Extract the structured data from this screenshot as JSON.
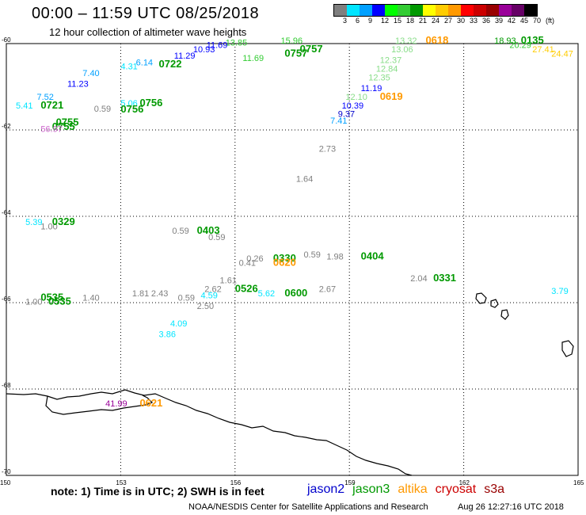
{
  "title": "00:00 – 11:59 UTC 08/25/2018",
  "subtitle": "12 hour collection of altimeter wave heights",
  "legend": {
    "colors": [
      "#7f7f7f",
      "#00e5ff",
      "#00a0ff",
      "#0000ff",
      "#00ff00",
      "#33cc33",
      "#009900",
      "#ffff00",
      "#ffcc00",
      "#ff9900",
      "#ff0000",
      "#cc0000",
      "#990000",
      "#990099",
      "#660066",
      "#000000"
    ],
    "labels": [
      "3",
      "6",
      "9",
      "12",
      "15",
      "18",
      "21",
      "24",
      "27",
      "30",
      "33",
      "36",
      "39",
      "42",
      "45",
      "70",
      "(ft)"
    ]
  },
  "axes": {
    "x_ticks": [
      "150",
      "153",
      "156",
      "159",
      "162",
      "165"
    ],
    "y_ticks": [
      "-60",
      "-62",
      "-64",
      "-66",
      "-68",
      "-70"
    ]
  },
  "footer": {
    "note": "note: 1) Time is in UTC; 2) SWH is in feet",
    "credit": "NOAA/NESDIS Center for Satellite Applications and Research",
    "generated": "Aug 26 12:27:16 UTC 2018"
  },
  "satellites": [
    {
      "name": "jason2",
      "color": "#0000cc"
    },
    {
      "name": "jason3",
      "color": "#009900"
    },
    {
      "name": "altika",
      "color": "#ff9900"
    },
    {
      "name": "cryosat",
      "color": "#cc0000"
    },
    {
      "name": "s3a",
      "color": "#990000"
    }
  ],
  "map_labels": [
    {
      "t": "13.85",
      "lon": 155.75,
      "lat": -60.05,
      "c": "#33cc33"
    },
    {
      "t": "11.69",
      "lon": 155.25,
      "lat": -60.1,
      "c": "#0000ff"
    },
    {
      "t": "10.93",
      "lon": 154.9,
      "lat": -60.2,
      "c": "#0000ff"
    },
    {
      "t": "11.29",
      "lon": 154.4,
      "lat": -60.35,
      "c": "#0000ff"
    },
    {
      "t": "6.14",
      "lon": 153.4,
      "lat": -60.5,
      "c": "#00a0ff"
    },
    {
      "t": "4.31",
      "lon": 153.0,
      "lat": -60.6,
      "c": "#00e5ff"
    },
    {
      "t": "0722",
      "lon": 154.0,
      "lat": -60.55,
      "c": "#009900",
      "b": true
    },
    {
      "t": "7.40",
      "lon": 152.0,
      "lat": -60.75,
      "c": "#00a0ff"
    },
    {
      "t": "11.23",
      "lon": 151.6,
      "lat": -61.0,
      "c": "#0000ff"
    },
    {
      "t": "7.52",
      "lon": 150.8,
      "lat": -61.3,
      "c": "#00a0ff"
    },
    {
      "t": "5.41",
      "lon": 150.25,
      "lat": -61.5,
      "c": "#00e5ff"
    },
    {
      "t": "0721",
      "lon": 150.9,
      "lat": -61.5,
      "c": "#009900",
      "b": true
    },
    {
      "t": "0.59",
      "lon": 152.3,
      "lat": -61.58,
      "c": "#7f7f7f"
    },
    {
      "t": "5.06",
      "lon": 153.0,
      "lat": -61.45,
      "c": "#00e5ff"
    },
    {
      "t": "0756",
      "lon": 153.5,
      "lat": -61.45,
      "c": "#009900",
      "b": true
    },
    {
      "t": "0756",
      "lon": 153.0,
      "lat": -61.6,
      "c": "#009900",
      "b": true
    },
    {
      "t": "0755",
      "lon": 151.3,
      "lat": -61.9,
      "c": "#009900",
      "b": true
    },
    {
      "t": "0755",
      "lon": 151.2,
      "lat": -62.0,
      "c": "#009900",
      "b": true
    },
    {
      "t": "56.97",
      "lon": 150.9,
      "lat": -62.05,
      "c": "#cc66cc"
    },
    {
      "t": "15.96",
      "lon": 157.2,
      "lat": -60.0,
      "c": "#33cc33"
    },
    {
      "t": "0757",
      "lon": 157.7,
      "lat": -60.2,
      "c": "#009900",
      "b": true
    },
    {
      "t": "0757",
      "lon": 157.3,
      "lat": -60.3,
      "c": "#009900",
      "b": true
    },
    {
      "t": "11.69",
      "lon": 156.2,
      "lat": -60.4,
      "c": "#33cc33"
    },
    {
      "t": "13.32",
      "lon": 160.2,
      "lat": -60.0,
      "c": "#88dd88"
    },
    {
      "t": "0618",
      "lon": 161.0,
      "lat": -60.0,
      "c": "#ff9900",
      "b": true
    },
    {
      "t": "13.06",
      "lon": 160.1,
      "lat": -60.2,
      "c": "#88dd88"
    },
    {
      "t": "12.37",
      "lon": 159.8,
      "lat": -60.45,
      "c": "#88dd88"
    },
    {
      "t": "12.84",
      "lon": 159.7,
      "lat": -60.65,
      "c": "#88dd88"
    },
    {
      "t": "12.35",
      "lon": 159.5,
      "lat": -60.85,
      "c": "#88dd88"
    },
    {
      "t": "11.19",
      "lon": 159.3,
      "lat": -61.1,
      "c": "#0000ff"
    },
    {
      "t": "12.10",
      "lon": 158.9,
      "lat": -61.3,
      "c": "#88dd88"
    },
    {
      "t": "0619",
      "lon": 159.8,
      "lat": -61.3,
      "c": "#ff9900",
      "b": true
    },
    {
      "t": "10.39",
      "lon": 158.8,
      "lat": -61.5,
      "c": "#0000ff"
    },
    {
      "t": "9.37",
      "lon": 158.7,
      "lat": -61.7,
      "c": "#0000cc"
    },
    {
      "t": "7.41",
      "lon": 158.5,
      "lat": -61.85,
      "c": "#00a0ff"
    },
    {
      "t": "18.93",
      "lon": 162.8,
      "lat": -60.0,
      "c": "#009900"
    },
    {
      "t": "0135",
      "lon": 163.5,
      "lat": -60.0,
      "c": "#009900",
      "b": true
    },
    {
      "t": "20.29",
      "lon": 163.2,
      "lat": -60.1,
      "c": "#33cc33"
    },
    {
      "t": "27.41",
      "lon": 163.8,
      "lat": -60.2,
      "c": "#ffcc00"
    },
    {
      "t": "24.47",
      "lon": 164.3,
      "lat": -60.3,
      "c": "#ffcc00"
    },
    {
      "t": "2.73",
      "lon": 158.2,
      "lat": -62.5,
      "c": "#7f7f7f"
    },
    {
      "t": "1.64",
      "lon": 157.6,
      "lat": -63.2,
      "c": "#7f7f7f"
    },
    {
      "t": "5.39",
      "lon": 150.5,
      "lat": -64.2,
      "c": "#00e5ff"
    },
    {
      "t": "1.00",
      "lon": 150.9,
      "lat": -64.3,
      "c": "#7f7f7f"
    },
    {
      "t": "0329",
      "lon": 151.2,
      "lat": -64.2,
      "c": "#009900",
      "b": true
    },
    {
      "t": "0.59",
      "lon": 154.35,
      "lat": -64.4,
      "c": "#7f7f7f"
    },
    {
      "t": "0403",
      "lon": 155.0,
      "lat": -64.4,
      "c": "#009900",
      "b": true
    },
    {
      "t": "0.59",
      "lon": 155.3,
      "lat": -64.55,
      "c": "#7f7f7f"
    },
    {
      "t": "0.26",
      "lon": 156.3,
      "lat": -65.05,
      "c": "#7f7f7f"
    },
    {
      "t": "0.41",
      "lon": 156.1,
      "lat": -65.15,
      "c": "#7f7f7f"
    },
    {
      "t": "0330",
      "lon": 157.0,
      "lat": -65.05,
      "c": "#009900",
      "b": true
    },
    {
      "t": "0620",
      "lon": 157.0,
      "lat": -65.15,
      "c": "#ff9900",
      "b": true
    },
    {
      "t": "0.59",
      "lon": 157.8,
      "lat": -64.95,
      "c": "#7f7f7f"
    },
    {
      "t": "1.98",
      "lon": 158.4,
      "lat": -65.0,
      "c": "#7f7f7f"
    },
    {
      "t": "0404",
      "lon": 159.3,
      "lat": -65.0,
      "c": "#009900",
      "b": true
    },
    {
      "t": "2.04",
      "lon": 160.6,
      "lat": -65.5,
      "c": "#7f7f7f"
    },
    {
      "t": "0331",
      "lon": 161.2,
      "lat": -65.5,
      "c": "#009900",
      "b": true
    },
    {
      "t": "1.61",
      "lon": 155.6,
      "lat": -65.55,
      "c": "#7f7f7f"
    },
    {
      "t": "2.62",
      "lon": 155.2,
      "lat": -65.75,
      "c": "#7f7f7f"
    },
    {
      "t": "0526",
      "lon": 156.0,
      "lat": -65.75,
      "c": "#009900",
      "b": true
    },
    {
      "t": "2.67",
      "lon": 158.2,
      "lat": -65.75,
      "c": "#7f7f7f"
    },
    {
      "t": "5.62",
      "lon": 156.6,
      "lat": -65.85,
      "c": "#00e5ff"
    },
    {
      "t": "0600",
      "lon": 157.3,
      "lat": -65.85,
      "c": "#009900",
      "b": true
    },
    {
      "t": "4.59",
      "lon": 155.1,
      "lat": -65.9,
      "c": "#00e5ff"
    },
    {
      "t": "1.81",
      "lon": 153.3,
      "lat": -65.85,
      "c": "#7f7f7f"
    },
    {
      "t": "2.43",
      "lon": 153.8,
      "lat": -65.85,
      "c": "#7f7f7f"
    },
    {
      "t": "0.59",
      "lon": 154.5,
      "lat": -65.95,
      "c": "#7f7f7f"
    },
    {
      "t": "1.40",
      "lon": 152.0,
      "lat": -65.95,
      "c": "#7f7f7f"
    },
    {
      "t": "0535",
      "lon": 150.9,
      "lat": -65.95,
      "c": "#009900",
      "b": true
    },
    {
      "t": "0535",
      "lon": 151.1,
      "lat": -66.05,
      "c": "#009900",
      "b": true
    },
    {
      "t": "1.00",
      "lon": 150.5,
      "lat": -66.05,
      "c": "#7f7f7f"
    },
    {
      "t": "2.50",
      "lon": 155.0,
      "lat": -66.15,
      "c": "#7f7f7f"
    },
    {
      "t": "3.79",
      "lon": 164.3,
      "lat": -65.8,
      "c": "#00e5ff"
    },
    {
      "t": "4.09",
      "lon": 154.3,
      "lat": -66.55,
      "c": "#00e5ff"
    },
    {
      "t": "3.86",
      "lon": 154.0,
      "lat": -66.8,
      "c": "#00e5ff"
    },
    {
      "t": "41.99",
      "lon": 152.6,
      "lat": -68.4,
      "c": "#990099"
    },
    {
      "t": "0621",
      "lon": 153.5,
      "lat": -68.4,
      "c": "#ff9900",
      "b": true
    }
  ]
}
